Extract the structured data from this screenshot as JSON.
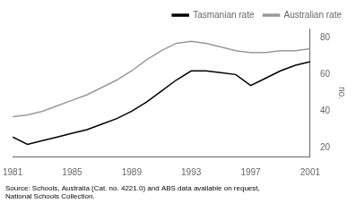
{
  "chart_data": {
    "type": "line",
    "x": [
      1981,
      1982,
      1983,
      1984,
      1985,
      1986,
      1987,
      1988,
      1989,
      1990,
      1991,
      1992,
      1993,
      1994,
      1995,
      1996,
      1997,
      1998,
      1999,
      2000,
      2001
    ],
    "series": [
      {
        "name": "Tasmanian rate",
        "color": "#000000",
        "values": [
          26,
          22,
          24,
          26,
          28,
          30,
          33,
          36,
          40,
          45,
          51,
          57,
          62,
          62,
          61,
          60,
          54,
          58,
          62,
          65,
          67
        ]
      },
      {
        "name": "Australian rate",
        "color": "#999999",
        "values": [
          37,
          38,
          40,
          43,
          46,
          49,
          53,
          57,
          62,
          68,
          73,
          77,
          78,
          77,
          75,
          73,
          72,
          72,
          73,
          73,
          74
        ]
      }
    ],
    "ylabel": "no.",
    "xlim": [
      1981,
      2001
    ],
    "xticks": [
      1981,
      1985,
      1989,
      1993,
      1997,
      2001
    ],
    "ylim": [
      15,
      85
    ],
    "yticks": [
      20,
      40,
      60,
      80
    ],
    "annotations": [
      "Source: Schools, Australia (Cat. no. 4221.0) and ABS data available on request,\nNational Schools Collection."
    ],
    "grid": false,
    "legend": "upper right"
  }
}
